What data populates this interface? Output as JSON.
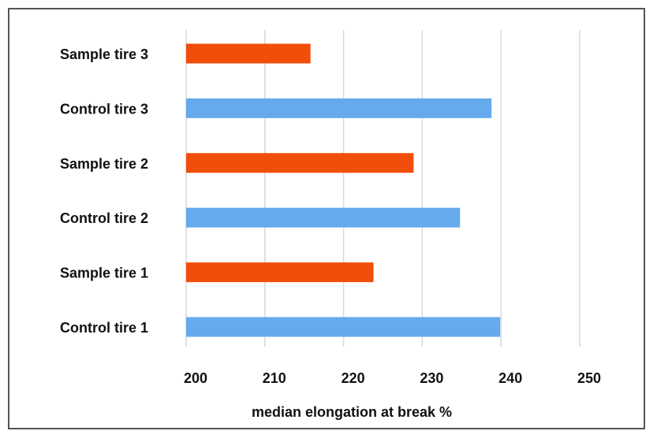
{
  "chart_data": {
    "type": "bar",
    "orientation": "horizontal",
    "title": "",
    "xlabel": "median elongation at break %",
    "ylabel": "",
    "categories": [
      "Sample tire 3",
      "Control tire 3",
      "Sample tire 2",
      "Control tire 2",
      "Sample tire 1",
      "Control tire 1"
    ],
    "values": [
      215.8,
      238.8,
      228.9,
      234.8,
      223.8,
      239.9
    ],
    "bar_colors": [
      "#f04e0a",
      "#66aaee",
      "#f04e0a",
      "#66aaee",
      "#f04e0a",
      "#66aaee"
    ],
    "xlim": [
      200,
      250
    ],
    "xticks": [
      200,
      210,
      220,
      230,
      240,
      250
    ],
    "grid": true,
    "legend": "none"
  }
}
